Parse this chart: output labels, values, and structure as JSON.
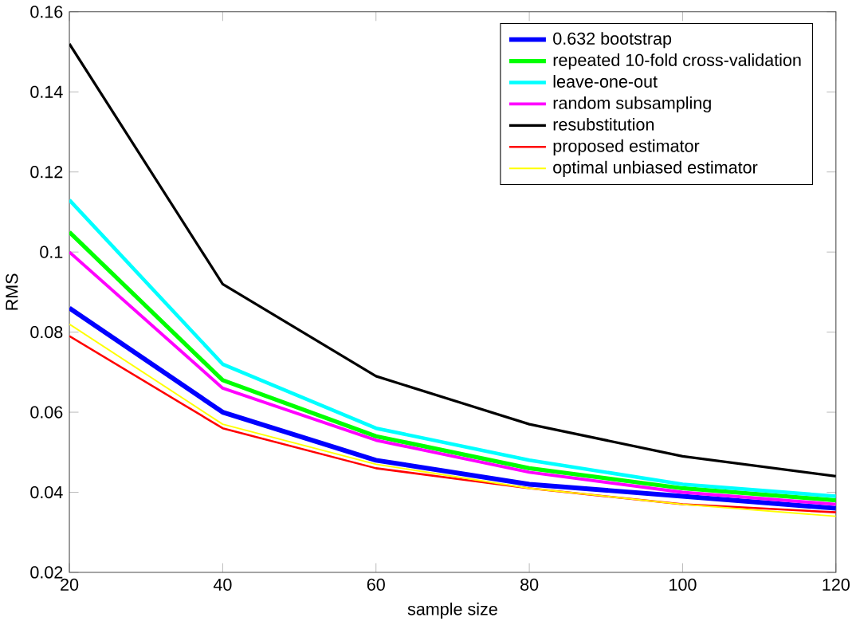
{
  "chart_data": {
    "type": "line",
    "xlabel": "sample size",
    "ylabel": "RMS",
    "x": [
      20,
      40,
      60,
      80,
      100,
      120
    ],
    "xlim": [
      20,
      120
    ],
    "xticks": [
      20,
      40,
      60,
      80,
      100,
      120
    ],
    "ylim": [
      0.02,
      0.16
    ],
    "yticks": [
      0.02,
      0.04,
      0.06,
      0.08,
      0.1,
      0.12,
      0.14,
      0.16
    ],
    "grid": false,
    "legend": "top right",
    "marker": "none",
    "line_style": "solid",
    "series": [
      {
        "name": "0.632 bootstrap",
        "color": "#0000ff",
        "values": [
          0.086,
          0.06,
          0.048,
          0.042,
          0.039,
          0.036
        ]
      },
      {
        "name": "repeated 10-fold cross-validation",
        "color": "#00ff00",
        "values": [
          0.105,
          0.068,
          0.054,
          0.046,
          0.041,
          0.038
        ]
      },
      {
        "name": "leave-one-out",
        "color": "#00ffff",
        "values": [
          0.113,
          0.072,
          0.056,
          0.048,
          0.042,
          0.039
        ]
      },
      {
        "name": "random subsampling",
        "color": "#ff00ff",
        "values": [
          0.1,
          0.066,
          0.053,
          0.045,
          0.04,
          0.037
        ]
      },
      {
        "name": "resubstitution",
        "color": "#000000",
        "values": [
          0.152,
          0.092,
          0.069,
          0.057,
          0.049,
          0.044
        ]
      },
      {
        "name": "proposed estimator",
        "color": "#ff0000",
        "values": [
          0.079,
          0.056,
          0.046,
          0.041,
          0.037,
          0.035
        ]
      },
      {
        "name": "optimal unbiased estimator",
        "color": "#ffff00",
        "values": [
          0.082,
          0.057,
          0.047,
          0.041,
          0.037,
          0.034
        ]
      }
    ]
  }
}
